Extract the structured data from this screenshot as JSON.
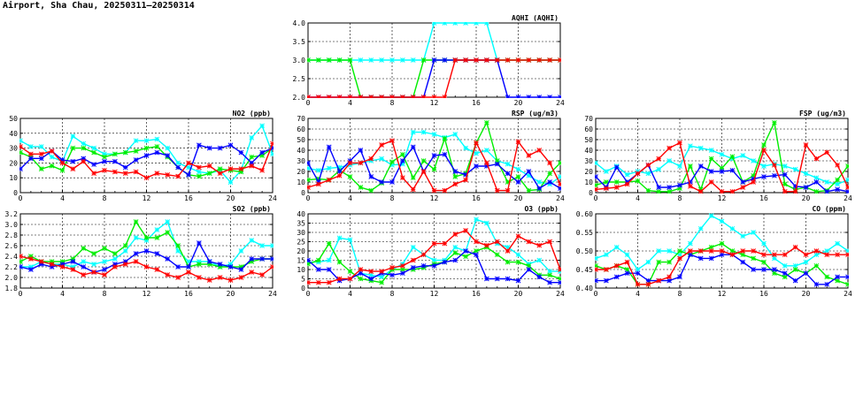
{
  "page": {
    "title": "Airport, Sha Chau, 20250311–20250314"
  },
  "colors": {
    "series1": "#00ffff",
    "series2": "#00ee00",
    "series3": "#0000ff",
    "series4": "#ff0000"
  },
  "chart_data": [
    {
      "id": "aqhi",
      "type": "line",
      "title": "AQHI (AQHI)",
      "ylim": [
        2.0,
        4.0
      ],
      "yticks": [
        "2.0",
        "2.5",
        "3.0",
        "3.5",
        "4.0"
      ],
      "xlim": [
        0,
        24
      ],
      "xticks": [
        "0",
        "4",
        "8",
        "12",
        "16",
        "20",
        "24"
      ],
      "grid": true,
      "series": [
        {
          "color": "#00ffff",
          "values": [
            3,
            3,
            3,
            3,
            3,
            3,
            3,
            3,
            3,
            3,
            3,
            3,
            4,
            4,
            4,
            4,
            4,
            4,
            3,
            3,
            3,
            3,
            3,
            3,
            3
          ]
        },
        {
          "color": "#00ee00",
          "values": [
            3,
            3,
            3,
            3,
            3,
            2,
            2,
            2,
            2,
            2,
            2,
            3,
            3,
            3,
            3,
            3,
            3,
            3,
            3,
            3,
            3,
            3,
            3,
            3,
            3
          ]
        },
        {
          "color": "#0000ff",
          "values": [
            2,
            2,
            2,
            2,
            2,
            2,
            2,
            2,
            2,
            2,
            2,
            2,
            3,
            3,
            3,
            3,
            3,
            3,
            3,
            2,
            2,
            2,
            2,
            2,
            2
          ]
        },
        {
          "color": "#ff0000",
          "values": [
            2,
            2,
            2,
            2,
            2,
            2,
            2,
            2,
            2,
            2,
            2,
            2,
            2,
            2,
            3,
            3,
            3,
            3,
            3,
            3,
            3,
            3,
            3,
            3,
            3
          ]
        }
      ]
    },
    {
      "id": "no2",
      "type": "line",
      "title": "NO2 (ppb)",
      "ylim": [
        0,
        50
      ],
      "yticks": [
        "0",
        "10",
        "20",
        "30",
        "40",
        "50"
      ],
      "xlim": [
        0,
        24
      ],
      "xticks": [
        "0",
        "4",
        "8",
        "12",
        "16",
        "20",
        "24"
      ],
      "grid": true,
      "series": [
        {
          "color": "#00ffff",
          "values": [
            35,
            31,
            31,
            24,
            21,
            38,
            33,
            30,
            26,
            26,
            27,
            35,
            35,
            36,
            30,
            20,
            17,
            14,
            13,
            15,
            7,
            15,
            37,
            45,
            26
          ]
        },
        {
          "color": "#00ee00",
          "values": [
            27,
            24,
            16,
            18,
            15,
            30,
            30,
            27,
            24,
            26,
            27,
            28,
            30,
            31,
            24,
            17,
            12,
            11,
            13,
            16,
            15,
            14,
            24,
            25,
            30
          ]
        },
        {
          "color": "#0000ff",
          "values": [
            16,
            23,
            23,
            28,
            22,
            21,
            23,
            19,
            21,
            21,
            17,
            22,
            25,
            27,
            25,
            17,
            12,
            32,
            30,
            30,
            32,
            27,
            20,
            27,
            30
          ]
        },
        {
          "color": "#ff0000",
          "values": [
            31,
            26,
            26,
            28,
            20,
            16,
            21,
            13,
            15,
            14,
            13,
            14,
            10,
            13,
            12,
            11,
            20,
            17,
            18,
            13,
            16,
            16,
            18,
            15,
            33
          ]
        }
      ]
    },
    {
      "id": "rsp",
      "type": "line",
      "title": "RSP (ug/m3)",
      "ylim": [
        0,
        70
      ],
      "yticks": [
        "0",
        "10",
        "20",
        "30",
        "40",
        "50",
        "60",
        "70"
      ],
      "xlim": [
        0,
        24
      ],
      "xticks": [
        "0",
        "4",
        "8",
        "12",
        "16",
        "20",
        "24"
      ],
      "grid": true,
      "series": [
        {
          "color": "#00ffff",
          "values": [
            23,
            21,
            23,
            24,
            26,
            28,
            30,
            32,
            26,
            27,
            57,
            57,
            55,
            52,
            55,
            42,
            37,
            40,
            30,
            27,
            22,
            16,
            10,
            8,
            15
          ]
        },
        {
          "color": "#00ee00",
          "values": [
            12,
            13,
            12,
            21,
            15,
            5,
            2,
            9,
            29,
            36,
            14,
            30,
            22,
            51,
            15,
            18,
            47,
            66,
            30,
            10,
            15,
            2,
            3,
            18,
            28
          ]
        },
        {
          "color": "#0000ff",
          "values": [
            28,
            10,
            43,
            20,
            30,
            40,
            15,
            10,
            10,
            30,
            43,
            20,
            35,
            36,
            20,
            17,
            25,
            25,
            27,
            18,
            10,
            20,
            4,
            10,
            4
          ]
        },
        {
          "color": "#ff0000",
          "values": [
            5,
            8,
            12,
            16,
            28,
            28,
            32,
            45,
            49,
            14,
            3,
            20,
            2,
            2,
            8,
            12,
            47,
            28,
            2,
            2,
            48,
            35,
            40,
            28,
            8
          ]
        }
      ]
    },
    {
      "id": "fsp",
      "type": "line",
      "title": "FSP (ug/m3)",
      "ylim": [
        0,
        70
      ],
      "yticks": [
        "0",
        "10",
        "20",
        "30",
        "40",
        "50",
        "60",
        "70"
      ],
      "xlim": [
        0,
        24
      ],
      "xticks": [
        "0",
        "4",
        "8",
        "12",
        "16",
        "20",
        "24"
      ],
      "grid": true,
      "series": [
        {
          "color": "#00ffff",
          "values": [
            28,
            20,
            25,
            17,
            20,
            18,
            22,
            30,
            25,
            44,
            42,
            40,
            36,
            32,
            35,
            30,
            25,
            27,
            25,
            22,
            18,
            14,
            10,
            8,
            12
          ]
        },
        {
          "color": "#00ee00",
          "values": [
            7,
            10,
            10,
            10,
            11,
            2,
            1,
            1,
            4,
            25,
            3,
            32,
            23,
            34,
            10,
            16,
            45,
            66,
            8,
            3,
            5,
            1,
            2,
            12,
            25
          ]
        },
        {
          "color": "#0000ff",
          "values": [
            15,
            5,
            24,
            10,
            18,
            26,
            5,
            5,
            7,
            10,
            25,
            20,
            20,
            21,
            10,
            13,
            15,
            16,
            17,
            6,
            5,
            10,
            1,
            3,
            1
          ]
        },
        {
          "color": "#ff0000",
          "values": [
            3,
            4,
            5,
            8,
            18,
            26,
            32,
            42,
            47,
            6,
            1,
            10,
            1,
            1,
            5,
            10,
            40,
            26,
            1,
            1,
            45,
            32,
            38,
            26,
            5
          ]
        }
      ]
    },
    {
      "id": "so2",
      "type": "line",
      "title": "SO2 (ppb)",
      "ylim": [
        1.8,
        3.2
      ],
      "yticks": [
        "1.8",
        "2.0",
        "2.2",
        "2.4",
        "2.6",
        "2.8",
        "3.0",
        "3.2"
      ],
      "xlim": [
        0,
        24
      ],
      "xticks": [
        "0",
        "4",
        "8",
        "12",
        "16",
        "20",
        "24"
      ],
      "grid": true,
      "series": [
        {
          "color": "#00ffff",
          "values": [
            2.2,
            2.2,
            2.3,
            2.25,
            2.25,
            2.2,
            2.3,
            2.25,
            2.3,
            2.35,
            2.5,
            2.75,
            2.7,
            2.9,
            3.05,
            2.5,
            2.3,
            2.3,
            2.3,
            2.2,
            2.25,
            2.5,
            2.7,
            2.6,
            2.6
          ]
        },
        {
          "color": "#00ee00",
          "values": [
            2.3,
            2.4,
            2.3,
            2.3,
            2.3,
            2.35,
            2.55,
            2.45,
            2.55,
            2.45,
            2.6,
            3.05,
            2.75,
            2.75,
            2.85,
            2.6,
            2.2,
            2.25,
            2.25,
            2.2,
            2.2,
            2.2,
            2.3,
            2.35,
            2.35
          ]
        },
        {
          "color": "#0000ff",
          "values": [
            2.2,
            2.15,
            2.25,
            2.2,
            2.25,
            2.3,
            2.2,
            2.1,
            2.15,
            2.25,
            2.3,
            2.45,
            2.5,
            2.45,
            2.35,
            2.2,
            2.2,
            2.65,
            2.3,
            2.25,
            2.2,
            2.15,
            2.35,
            2.35,
            2.35
          ]
        },
        {
          "color": "#ff0000",
          "values": [
            2.4,
            2.35,
            2.3,
            2.25,
            2.2,
            2.15,
            2.05,
            2.1,
            2.05,
            2.2,
            2.25,
            2.3,
            2.2,
            2.15,
            2.05,
            2.0,
            2.1,
            2.0,
            1.95,
            2.0,
            1.95,
            2.0,
            2.1,
            2.05,
            2.2
          ]
        }
      ]
    },
    {
      "id": "o3",
      "type": "line",
      "title": "O3 (ppb)",
      "ylim": [
        0,
        40
      ],
      "yticks": [
        "0",
        "5",
        "10",
        "15",
        "20",
        "25",
        "30",
        "35",
        "40"
      ],
      "xlim": [
        0,
        24
      ],
      "xticks": [
        "0",
        "4",
        "8",
        "12",
        "16",
        "20",
        "24"
      ],
      "grid": true,
      "series": [
        {
          "color": "#00ffff",
          "values": [
            14,
            14,
            15,
            27,
            26,
            8,
            7,
            6,
            10,
            13,
            22,
            18,
            15,
            15,
            22,
            20,
            37,
            35,
            24,
            22,
            18,
            13,
            15,
            9,
            9
          ]
        },
        {
          "color": "#00ee00",
          "values": [
            13,
            15,
            24,
            14,
            9,
            5,
            4,
            3,
            10,
            10,
            10,
            11,
            13,
            14,
            19,
            17,
            20,
            22,
            18,
            14,
            14,
            12,
            7,
            7,
            5
          ]
        },
        {
          "color": "#0000ff",
          "values": [
            15,
            10,
            10,
            4,
            5,
            8,
            5,
            8,
            7,
            8,
            11,
            12,
            12,
            14,
            15,
            20,
            18,
            5,
            5,
            5,
            4,
            10,
            6,
            3,
            3
          ]
        },
        {
          "color": "#ff0000",
          "values": [
            3,
            3,
            3,
            5,
            5,
            10,
            9,
            9,
            11,
            12,
            15,
            18,
            24,
            24,
            29,
            31,
            25,
            23,
            25,
            20,
            28,
            25,
            23,
            25,
            10
          ]
        }
      ]
    },
    {
      "id": "co",
      "type": "line",
      "title": "CO (ppm)",
      "ylim": [
        0.4,
        0.6
      ],
      "yticks": [
        "0.40",
        "0.45",
        "0.50",
        "0.55",
        "0.60"
      ],
      "xlim": [
        0,
        24
      ],
      "xticks": [
        "0",
        "4",
        "8",
        "12",
        "16",
        "20",
        "24"
      ],
      "grid": true,
      "series": [
        {
          "color": "#00ffff",
          "values": [
            0.48,
            0.49,
            0.51,
            0.49,
            0.45,
            0.47,
            0.5,
            0.5,
            0.49,
            0.52,
            0.56,
            0.595,
            0.58,
            0.56,
            0.54,
            0.55,
            0.52,
            0.48,
            0.46,
            0.46,
            0.47,
            0.49,
            0.5,
            0.52,
            0.5
          ]
        },
        {
          "color": "#00ee00",
          "values": [
            0.46,
            0.45,
            0.46,
            0.45,
            0.41,
            0.41,
            0.47,
            0.47,
            0.5,
            0.49,
            0.5,
            0.51,
            0.52,
            0.5,
            0.49,
            0.48,
            0.47,
            0.44,
            0.43,
            0.45,
            0.44,
            0.46,
            0.43,
            0.42,
            0.41
          ]
        },
        {
          "color": "#0000ff",
          "values": [
            0.42,
            0.42,
            0.43,
            0.44,
            0.44,
            0.42,
            0.42,
            0.42,
            0.43,
            0.49,
            0.48,
            0.48,
            0.49,
            0.49,
            0.47,
            0.45,
            0.45,
            0.45,
            0.44,
            0.42,
            0.44,
            0.41,
            0.41,
            0.43,
            0.43
          ]
        },
        {
          "color": "#ff0000",
          "values": [
            0.45,
            0.45,
            0.46,
            0.47,
            0.41,
            0.41,
            0.42,
            0.43,
            0.48,
            0.5,
            0.5,
            0.5,
            0.5,
            0.49,
            0.5,
            0.5,
            0.49,
            0.49,
            0.49,
            0.51,
            0.49,
            0.5,
            0.49,
            0.49,
            0.49
          ]
        }
      ]
    }
  ]
}
